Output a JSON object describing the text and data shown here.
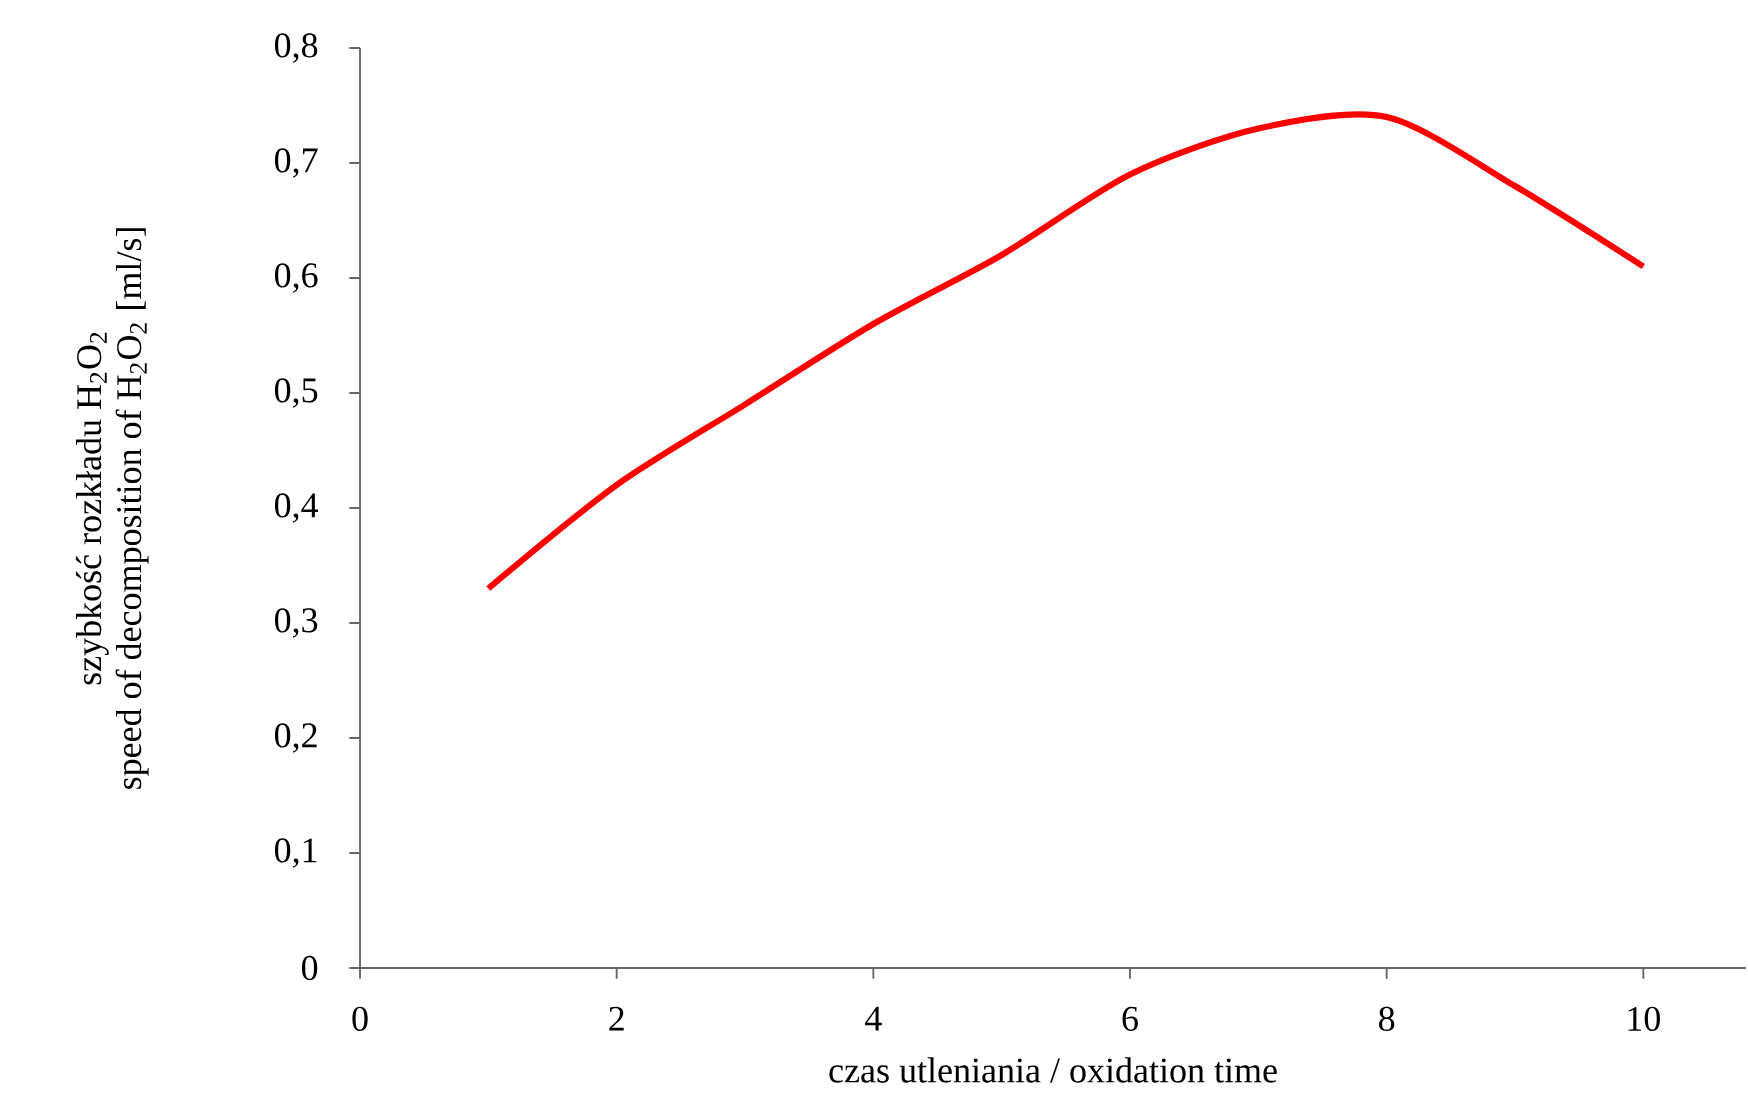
{
  "chart_data": {
    "type": "line",
    "xlabel": "czas utleniania / oxidation time",
    "ylabel": "szybkość rozkładu H$_{2}$O$_{2}$ speed of decomposition of H$_{2}$O$_{2}$ [ml/s]",
    "x": [
      1,
      2,
      3,
      4,
      5,
      6,
      7,
      8,
      9,
      10
    ],
    "series": [
      {
        "color": "#ff0000",
        "values": [
          0.33,
          0.42,
          0.49,
          0.56,
          0.62,
          0.69,
          0.73,
          0.74,
          0.68,
          0.61
        ]
      }
    ],
    "xlim": [
      0,
      10.8
    ],
    "ylim": [
      0,
      0.8
    ],
    "xticks": [
      0,
      2,
      4,
      6,
      8,
      10
    ],
    "yticks": [
      0,
      {
        "value": 0.1,
        "label": "0,1"
      },
      {
        "value": 0.2,
        "label": "0,2"
      },
      {
        "value": 0.3,
        "label": "0,3"
      },
      {
        "value": 0.4,
        "label": "0,4"
      },
      {
        "value": 0.5,
        "label": "0,5"
      },
      {
        "value": 0.6,
        "label": "0,6"
      },
      {
        "value": 0.7,
        "label": "0,7"
      },
      {
        "value": 0.8,
        "label": "0,8"
      }
    ],
    "grid": false,
    "marker": "none",
    "line_style": "solid"
  }
}
